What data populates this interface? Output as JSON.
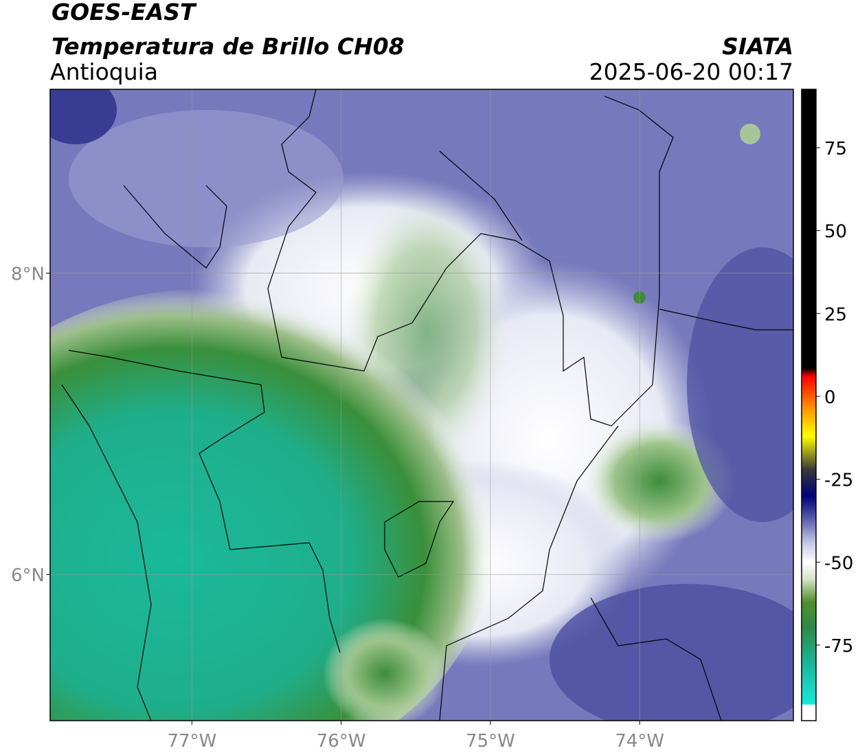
{
  "header": {
    "title": "GOES-EAST",
    "subtitle": "Temperatura de Brillo CH08",
    "region": "Antioquia",
    "source": "SIATA",
    "timestamp": "2025-06-20 00:17"
  },
  "map": {
    "xlim": [
      -77.95,
      -72.97
    ],
    "ylim": [
      5.03,
      9.22
    ],
    "xticks": [
      {
        "value": -77,
        "label": "77°W"
      },
      {
        "value": -76,
        "label": "76°W"
      },
      {
        "value": -75,
        "label": "75°W"
      },
      {
        "value": -74,
        "label": "74°W"
      }
    ],
    "yticks": [
      {
        "value": 6,
        "label": "6°N"
      },
      {
        "value": 8,
        "label": "8°N"
      }
    ],
    "grid": true,
    "grid_color": "#999999"
  },
  "colorbar": {
    "lim": [
      -97.8,
      92.6
    ],
    "ticks": [
      75,
      50,
      25,
      0,
      -25,
      -50,
      -75
    ],
    "stops": [
      {
        "value": -97.8,
        "color": "#ffffff"
      },
      {
        "value": -93,
        "color": "#ffffff"
      },
      {
        "value": -92.9,
        "color": "#19e8dc"
      },
      {
        "value": -80,
        "color": "#1bb496"
      },
      {
        "value": -70,
        "color": "#2f8a4a"
      },
      {
        "value": -62,
        "color": "#4f8f2c"
      },
      {
        "value": -55,
        "color": "#d6e4cc"
      },
      {
        "value": -50,
        "color": "#ffffff"
      },
      {
        "value": -44,
        "color": "#c4c6e4"
      },
      {
        "value": -37,
        "color": "#5b5ea8"
      },
      {
        "value": -30,
        "color": "#00007c"
      },
      {
        "value": -22,
        "color": "#3a3a3a"
      },
      {
        "value": -12,
        "color": "#ffff00"
      },
      {
        "value": -4,
        "color": "#ff9900"
      },
      {
        "value": 6,
        "color": "#ff0000"
      },
      {
        "value": 8.5,
        "color": "#000000"
      },
      {
        "value": 92.6,
        "color": "#000000"
      }
    ]
  }
}
